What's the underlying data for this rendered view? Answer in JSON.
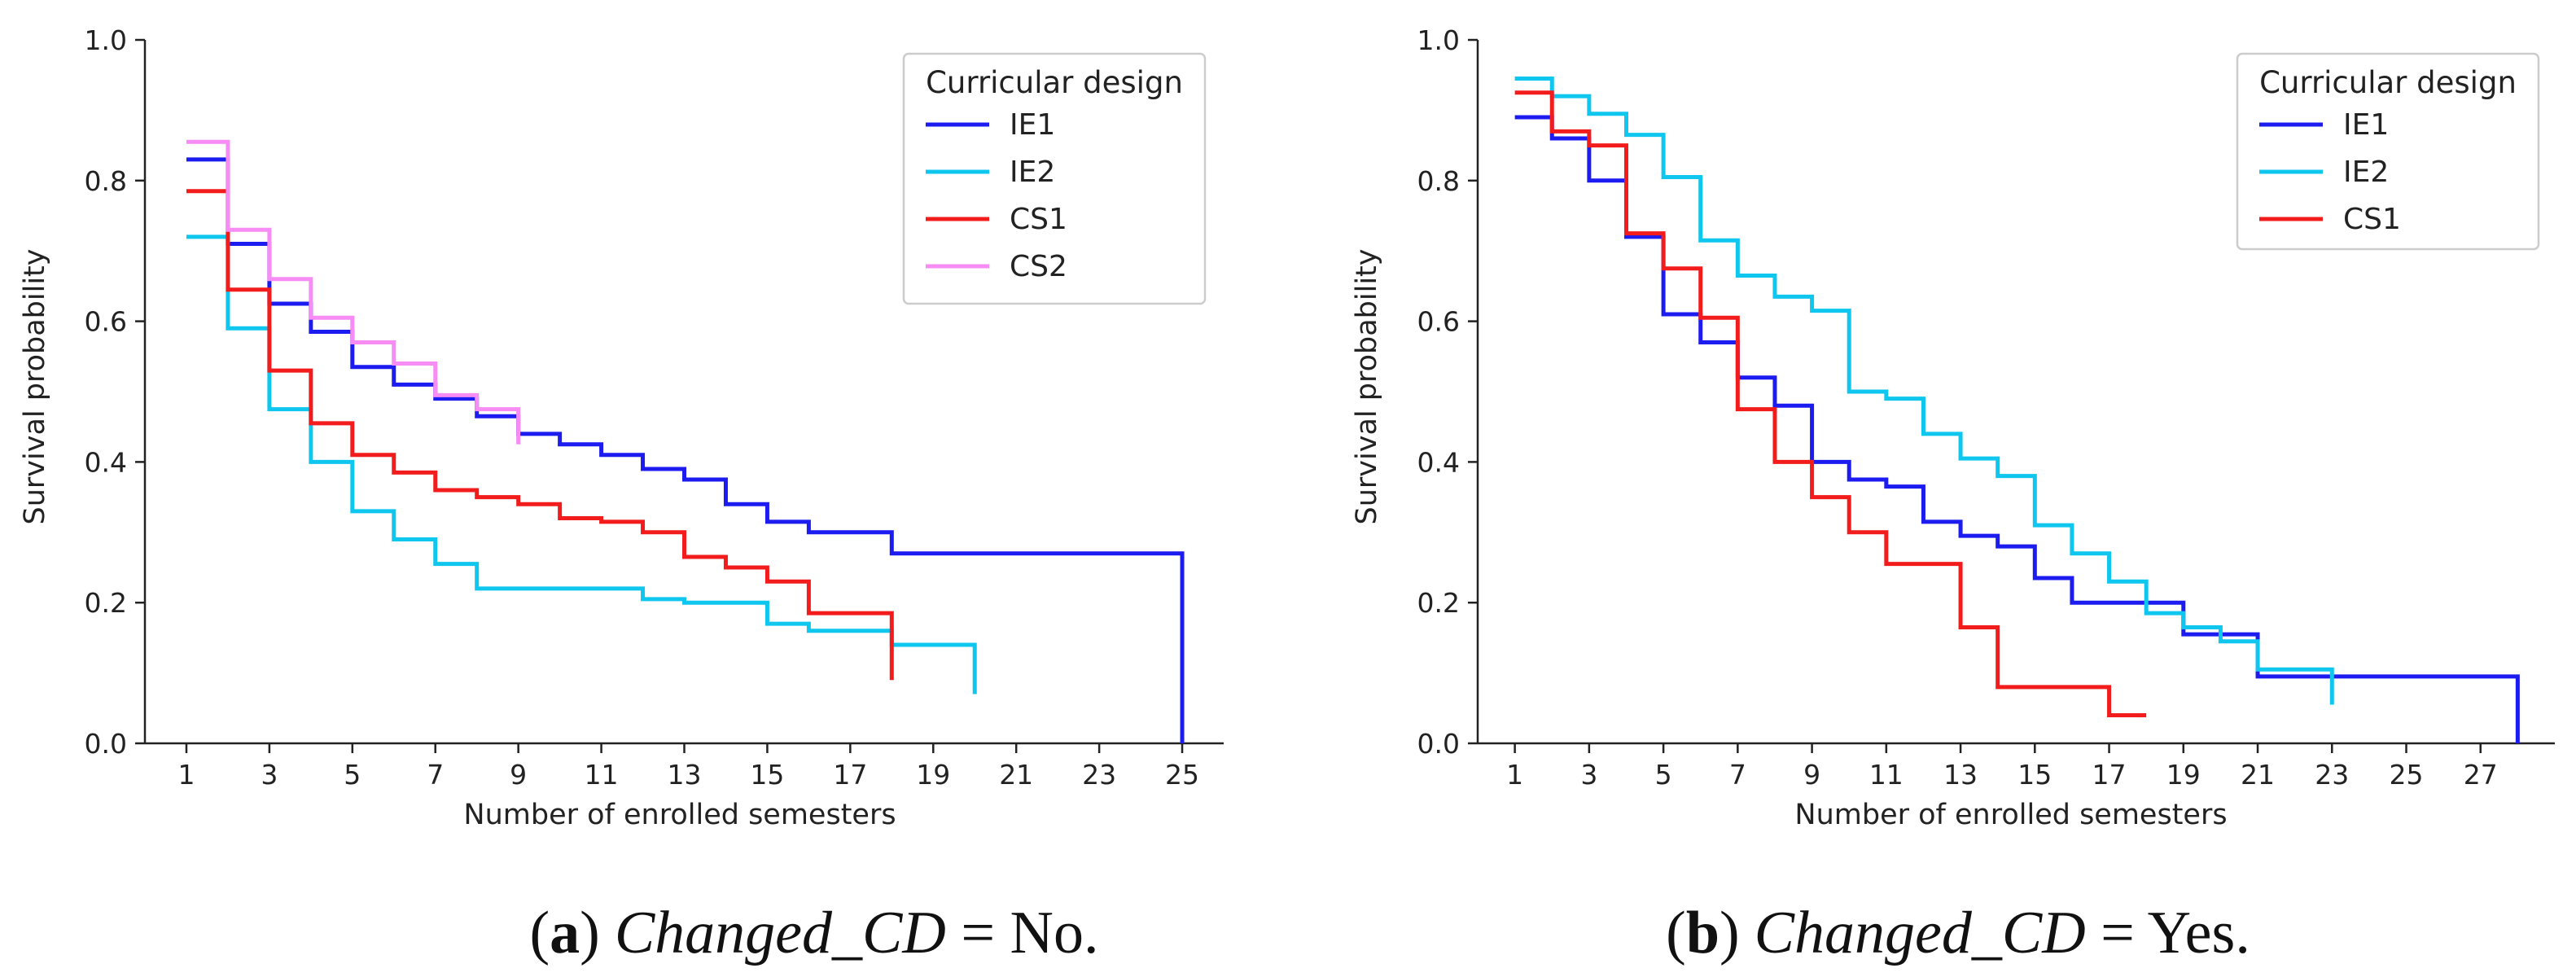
{
  "chart_data": [
    {
      "type": "line",
      "step": true,
      "panel": "a",
      "caption": {
        "open": "(",
        "letter": "a",
        "close": ")",
        "variable": "Changed_CD",
        "equals": " = ",
        "value": "No."
      },
      "xlabel": "Number of enrolled semesters",
      "ylabel": "Survival probability",
      "xlim": [
        0,
        26
      ],
      "ylim": [
        0,
        1.0
      ],
      "xticks": [
        1,
        3,
        5,
        7,
        9,
        11,
        13,
        15,
        17,
        19,
        21,
        23,
        25
      ],
      "yticks": [
        0.0,
        0.2,
        0.4,
        0.6,
        0.8,
        1.0
      ],
      "ytick_labels": [
        "0.0",
        "0.2",
        "0.4",
        "0.6",
        "0.8",
        "1.0"
      ],
      "legend": {
        "title": "Curricular design",
        "position": "upper-right"
      },
      "series": [
        {
          "name": "IE1",
          "color": "#1c1cf0",
          "x": [
            1,
            2,
            3,
            4,
            5,
            6,
            7,
            8,
            9,
            10,
            11,
            12,
            13,
            14,
            15,
            16,
            17,
            18,
            19,
            20,
            21,
            22,
            23,
            24,
            25,
            25
          ],
          "y": [
            0.83,
            0.71,
            0.625,
            0.585,
            0.535,
            0.51,
            0.49,
            0.465,
            0.44,
            0.425,
            0.41,
            0.39,
            0.375,
            0.34,
            0.315,
            0.3,
            0.3,
            0.27,
            0.27,
            0.27,
            0.27,
            0.27,
            0.27,
            0.27,
            0.27,
            0.0
          ]
        },
        {
          "name": "IE2",
          "color": "#0fc6ef",
          "x": [
            1,
            2,
            3,
            4,
            5,
            6,
            7,
            8,
            9,
            10,
            11,
            12,
            13,
            14,
            15,
            16,
            17,
            18,
            19,
            20,
            20
          ],
          "y": [
            0.72,
            0.59,
            0.475,
            0.4,
            0.33,
            0.29,
            0.255,
            0.22,
            0.22,
            0.22,
            0.22,
            0.205,
            0.2,
            0.2,
            0.17,
            0.16,
            0.16,
            0.14,
            0.14,
            0.14,
            0.07
          ]
        },
        {
          "name": "CS1",
          "color": "#f21c1c",
          "x": [
            1,
            2,
            3,
            4,
            5,
            6,
            7,
            8,
            9,
            10,
            11,
            12,
            13,
            14,
            15,
            16,
            17,
            18,
            18
          ],
          "y": [
            0.785,
            0.645,
            0.53,
            0.455,
            0.41,
            0.385,
            0.36,
            0.35,
            0.34,
            0.32,
            0.315,
            0.3,
            0.265,
            0.25,
            0.23,
            0.185,
            0.185,
            0.185,
            0.09
          ]
        },
        {
          "name": "CS2",
          "color": "#f68cf4",
          "x": [
            1,
            2,
            3,
            4,
            5,
            6,
            7,
            8,
            9,
            9
          ],
          "y": [
            0.855,
            0.73,
            0.66,
            0.605,
            0.57,
            0.54,
            0.495,
            0.475,
            0.475,
            0.425
          ]
        }
      ]
    },
    {
      "type": "line",
      "step": true,
      "panel": "b",
      "caption": {
        "open": "(",
        "letter": "b",
        "close": ")",
        "variable": "Changed_CD",
        "equals": " = ",
        "value": "Yes."
      },
      "xlabel": "Number of enrolled semesters",
      "ylabel": "Survival probability",
      "xlim": [
        0,
        29
      ],
      "ylim": [
        0,
        1.0
      ],
      "xticks": [
        1,
        3,
        5,
        7,
        9,
        11,
        13,
        15,
        17,
        19,
        21,
        23,
        25,
        27
      ],
      "yticks": [
        0.0,
        0.2,
        0.4,
        0.6,
        0.8,
        1.0
      ],
      "ytick_labels": [
        "0.0",
        "0.2",
        "0.4",
        "0.6",
        "0.8",
        "1.0"
      ],
      "legend": {
        "title": "Curricular design",
        "position": "upper-right"
      },
      "series": [
        {
          "name": "IE1",
          "color": "#1c1cf0",
          "x": [
            1,
            2,
            3,
            4,
            5,
            6,
            7,
            8,
            9,
            10,
            11,
            12,
            13,
            14,
            15,
            16,
            17,
            18,
            19,
            20,
            21,
            22,
            23,
            24,
            25,
            26,
            27,
            28,
            28
          ],
          "y": [
            0.89,
            0.86,
            0.8,
            0.72,
            0.61,
            0.57,
            0.52,
            0.48,
            0.4,
            0.375,
            0.365,
            0.315,
            0.295,
            0.28,
            0.235,
            0.2,
            0.2,
            0.2,
            0.155,
            0.155,
            0.095,
            0.095,
            0.095,
            0.095,
            0.095,
            0.095,
            0.095,
            0.095,
            0.0
          ]
        },
        {
          "name": "IE2",
          "color": "#0fc6ef",
          "x": [
            1,
            2,
            3,
            4,
            5,
            6,
            7,
            8,
            9,
            10,
            11,
            12,
            13,
            14,
            15,
            16,
            17,
            18,
            19,
            20,
            21,
            22,
            23,
            23
          ],
          "y": [
            0.945,
            0.92,
            0.895,
            0.865,
            0.805,
            0.715,
            0.665,
            0.635,
            0.615,
            0.5,
            0.49,
            0.44,
            0.405,
            0.38,
            0.31,
            0.27,
            0.23,
            0.185,
            0.165,
            0.145,
            0.105,
            0.105,
            0.105,
            0.055
          ]
        },
        {
          "name": "CS1",
          "color": "#f21c1c",
          "x": [
            1,
            2,
            3,
            4,
            5,
            6,
            7,
            8,
            9,
            10,
            11,
            12,
            13,
            14,
            15,
            16,
            17,
            18
          ],
          "y": [
            0.925,
            0.87,
            0.85,
            0.725,
            0.675,
            0.605,
            0.475,
            0.4,
            0.35,
            0.3,
            0.255,
            0.255,
            0.165,
            0.08,
            0.08,
            0.08,
            0.04,
            0.04
          ]
        }
      ]
    }
  ]
}
